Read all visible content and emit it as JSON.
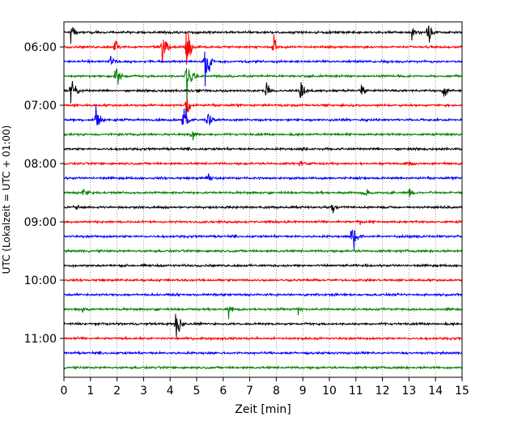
{
  "chart_data": {
    "type": "line",
    "title": "",
    "xlabel": "Zeit  [min]",
    "ylabel": "UTC (Lokalzeit = UTC + 01:00)",
    "xlim": [
      0,
      15
    ],
    "x_ticks": [
      0,
      1,
      2,
      3,
      4,
      5,
      6,
      7,
      8,
      9,
      10,
      11,
      12,
      13,
      14,
      15
    ],
    "y_ticks": [
      "06:00",
      "07:00",
      "08:00",
      "09:00",
      "10:00",
      "11:00"
    ],
    "grid": "vertical dotted",
    "trace_interval_minutes": 15,
    "first_trace": "05:45",
    "color_cycle": [
      "#000000",
      "#ff0000",
      "#0000ff",
      "#008000"
    ],
    "traces": [
      {
        "start": "05:45",
        "color": "#000000",
        "events": [
          {
            "t": 13.1,
            "amp": 1.0
          },
          {
            "t": 13.7,
            "amp": 2.0
          },
          {
            "t": 0.25,
            "amp": 1.4
          }
        ]
      },
      {
        "start": "06:00",
        "color": "#ff0000",
        "events": [
          {
            "t": 3.7,
            "amp": 2.2
          },
          {
            "t": 4.6,
            "amp": 3.5
          },
          {
            "t": 7.9,
            "amp": 1.6
          },
          {
            "t": 1.9,
            "amp": 1.2
          }
        ]
      },
      {
        "start": "06:15",
        "color": "#0000ff",
        "events": [
          {
            "t": 5.3,
            "amp": 4.0
          },
          {
            "t": 1.75,
            "amp": 0.8
          }
        ]
      },
      {
        "start": "06:30",
        "color": "#008000",
        "events": [
          {
            "t": 4.6,
            "amp": 4.5
          },
          {
            "t": 1.95,
            "amp": 1.8
          }
        ]
      },
      {
        "start": "06:45",
        "color": "#000000",
        "events": [
          {
            "t": 0.25,
            "amp": 3.0
          },
          {
            "t": 7.6,
            "amp": 1.6
          },
          {
            "t": 8.9,
            "amp": 1.4
          },
          {
            "t": 11.2,
            "amp": 1.1
          },
          {
            "t": 14.3,
            "amp": 1.0
          }
        ]
      },
      {
        "start": "07:00",
        "color": "#ff0000",
        "events": [
          {
            "t": 4.6,
            "amp": 1.8
          }
        ]
      },
      {
        "start": "07:15",
        "color": "#0000ff",
        "events": [
          {
            "t": 1.2,
            "amp": 2.4
          },
          {
            "t": 4.5,
            "amp": 2.6
          },
          {
            "t": 5.4,
            "amp": 1.5
          }
        ]
      },
      {
        "start": "07:30",
        "color": "#008000",
        "events": [
          {
            "t": 4.8,
            "amp": 1.2
          }
        ]
      },
      {
        "start": "07:45",
        "color": "#000000",
        "events": [
          {
            "t": 9.0,
            "amp": 0.4
          }
        ]
      },
      {
        "start": "08:00",
        "color": "#ff0000",
        "events": [
          {
            "t": 8.9,
            "amp": 0.5
          },
          {
            "t": 13.0,
            "amp": 0.4
          }
        ]
      },
      {
        "start": "08:15",
        "color": "#0000ff",
        "events": [
          {
            "t": 5.4,
            "amp": 1.0
          }
        ]
      },
      {
        "start": "08:30",
        "color": "#008000",
        "events": [
          {
            "t": 0.7,
            "amp": 0.8
          },
          {
            "t": 11.3,
            "amp": 1.0
          },
          {
            "t": 13.0,
            "amp": 0.6
          }
        ]
      },
      {
        "start": "08:45",
        "color": "#000000",
        "events": [
          {
            "t": 0.4,
            "amp": 0.7
          },
          {
            "t": 10.1,
            "amp": 0.9
          }
        ]
      },
      {
        "start": "09:00",
        "color": "#ff0000",
        "events": [
          {
            "t": 11.1,
            "amp": 0.5
          }
        ]
      },
      {
        "start": "09:15",
        "color": "#0000ff",
        "events": [
          {
            "t": 10.85,
            "amp": 3.0
          }
        ]
      },
      {
        "start": "09:30",
        "color": "#008000",
        "events": []
      },
      {
        "start": "09:45",
        "color": "#000000",
        "events": []
      },
      {
        "start": "10:00",
        "color": "#ff0000",
        "events": []
      },
      {
        "start": "10:15",
        "color": "#0000ff",
        "events": []
      },
      {
        "start": "10:30",
        "color": "#008000",
        "events": [
          {
            "t": 0.7,
            "amp": 0.6
          },
          {
            "t": 6.2,
            "amp": 1.2
          },
          {
            "t": 8.8,
            "amp": 0.7
          }
        ]
      },
      {
        "start": "10:45",
        "color": "#000000",
        "events": [
          {
            "t": 4.2,
            "amp": 3.0
          }
        ]
      },
      {
        "start": "11:00",
        "color": "#ff0000",
        "events": []
      },
      {
        "start": "11:15",
        "color": "#0000ff",
        "events": []
      },
      {
        "start": "11:30",
        "color": "#008000",
        "events": []
      }
    ]
  }
}
